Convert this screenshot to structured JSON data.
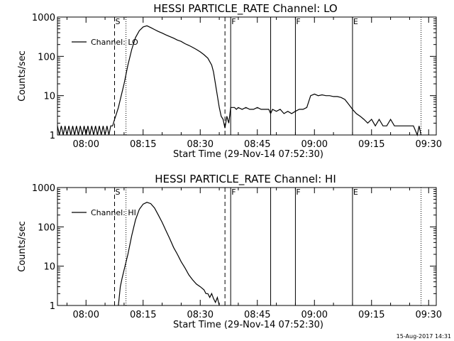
{
  "timestamp": "15-Aug-2017 14:31",
  "chart_data": [
    {
      "type": "line",
      "title": "HESSI PARTICLE_RATE Channel: LO",
      "xlabel": "Start Time (29-Nov-14 07:52:30)",
      "ylabel": "Counts/sec",
      "x_ticks": [
        "08:00",
        "08:15",
        "08:30",
        "08:45",
        "09:00",
        "09:15",
        "09:30"
      ],
      "x_range": [
        "07:52:30",
        "09:32:00"
      ],
      "y_scale": "log",
      "y_range": [
        1,
        1000
      ],
      "y_ticks": [
        "1",
        "10",
        "100",
        "1000"
      ],
      "legend": {
        "position": "top-left",
        "entries": [
          "Channel: LO"
        ]
      },
      "markers": [
        {
          "time": "08:07:30",
          "style": "dashed",
          "label": "S"
        },
        {
          "time": "08:10:30",
          "style": "dotted",
          "label": ""
        },
        {
          "time": "08:36:30",
          "style": "dashed",
          "label": ""
        },
        {
          "time": "08:38:00",
          "style": "solid",
          "label": "F"
        },
        {
          "time": "08:48:30",
          "style": "solid",
          "label": ""
        },
        {
          "time": "08:55:00",
          "style": "solid",
          "label": "F"
        },
        {
          "time": "09:10:00",
          "style": "solid",
          "label": "E"
        },
        {
          "time": "09:28:00",
          "style": "dotted",
          "label": ""
        }
      ],
      "series": [
        {
          "name": "Channel: LO",
          "points": [
            [
              "07:52:30",
              1.7
            ],
            [
              "07:53:00",
              1.0
            ],
            [
              "07:53:30",
              1.7
            ],
            [
              "07:54:00",
              1.0
            ],
            [
              "07:54:30",
              1.7
            ],
            [
              "07:55:00",
              1.0
            ],
            [
              "07:55:30",
              1.7
            ],
            [
              "07:56:00",
              1.0
            ],
            [
              "07:56:30",
              1.7
            ],
            [
              "07:57:00",
              1.0
            ],
            [
              "07:57:30",
              1.7
            ],
            [
              "07:58:00",
              1.0
            ],
            [
              "07:58:30",
              1.7
            ],
            [
              "07:59:00",
              1.0
            ],
            [
              "07:59:30",
              1.7
            ],
            [
              "08:00:00",
              1.0
            ],
            [
              "08:00:30",
              1.7
            ],
            [
              "08:01:00",
              1.0
            ],
            [
              "08:01:30",
              1.7
            ],
            [
              "08:02:00",
              1.0
            ],
            [
              "08:02:30",
              1.7
            ],
            [
              "08:03:00",
              1.0
            ],
            [
              "08:03:30",
              1.7
            ],
            [
              "08:04:00",
              1.0
            ],
            [
              "08:04:30",
              1.7
            ],
            [
              "08:05:00",
              1.0
            ],
            [
              "08:05:30",
              1.7
            ],
            [
              "08:06:00",
              1.0
            ],
            [
              "08:06:30",
              1.7
            ],
            [
              "08:07:00",
              1.7
            ],
            [
              "08:07:30",
              2.5
            ],
            [
              "08:08:00",
              3.5
            ],
            [
              "08:08:30",
              5
            ],
            [
              "08:09:00",
              8
            ],
            [
              "08:10:00",
              20
            ],
            [
              "08:11:00",
              60
            ],
            [
              "08:12:00",
              150
            ],
            [
              "08:13:00",
              300
            ],
            [
              "08:14:00",
              450
            ],
            [
              "08:15:00",
              560
            ],
            [
              "08:16:00",
              600
            ],
            [
              "08:17:00",
              540
            ],
            [
              "08:18:00",
              480
            ],
            [
              "08:19:00",
              430
            ],
            [
              "08:20:00",
              390
            ],
            [
              "08:21:00",
              350
            ],
            [
              "08:22:00",
              320
            ],
            [
              "08:23:00",
              290
            ],
            [
              "08:24:00",
              260
            ],
            [
              "08:25:00",
              240
            ],
            [
              "08:26:00",
              210
            ],
            [
              "08:27:00",
              190
            ],
            [
              "08:28:00",
              170
            ],
            [
              "08:29:00",
              150
            ],
            [
              "08:30:00",
              130
            ],
            [
              "08:31:00",
              110
            ],
            [
              "08:32:00",
              90
            ],
            [
              "08:33:00",
              60
            ],
            [
              "08:33:30",
              40
            ],
            [
              "08:34:00",
              20
            ],
            [
              "08:34:30",
              10
            ],
            [
              "08:35:00",
              5
            ],
            [
              "08:35:30",
              3
            ],
            [
              "08:36:00",
              2.5
            ],
            [
              "08:36:30",
              1.5
            ],
            [
              "08:37:00",
              3
            ],
            [
              "08:37:30",
              2
            ],
            [
              "08:38:00",
              5
            ],
            [
              "08:39:00",
              5
            ],
            [
              "08:39:30",
              4.5
            ],
            [
              "08:40:00",
              5
            ],
            [
              "08:41:00",
              4.5
            ],
            [
              "08:42:00",
              5
            ],
            [
              "08:43:00",
              4.5
            ],
            [
              "08:44:00",
              4.5
            ],
            [
              "08:45:00",
              5
            ],
            [
              "08:46:00",
              4.5
            ],
            [
              "08:47:00",
              4.5
            ],
            [
              "08:48:00",
              4.5
            ],
            [
              "08:48:30",
              3.5
            ],
            [
              "08:49:00",
              4.5
            ],
            [
              "08:50:00",
              4
            ],
            [
              "08:51:00",
              4.5
            ],
            [
              "08:52:00",
              3.5
            ],
            [
              "08:53:00",
              4
            ],
            [
              "08:54:00",
              3.5
            ],
            [
              "08:55:00",
              4
            ],
            [
              "08:56:00",
              4.5
            ],
            [
              "08:57:00",
              4.5
            ],
            [
              "08:58:00",
              5
            ],
            [
              "08:59:00",
              10
            ],
            [
              "09:00:00",
              11
            ],
            [
              "09:01:00",
              10
            ],
            [
              "09:02:00",
              10.5
            ],
            [
              "09:03:00",
              10
            ],
            [
              "09:04:00",
              10
            ],
            [
              "09:05:00",
              9.5
            ],
            [
              "09:06:00",
              9.5
            ],
            [
              "09:07:00",
              9
            ],
            [
              "09:08:00",
              8
            ],
            [
              "09:09:00",
              6
            ],
            [
              "09:10:00",
              4.5
            ],
            [
              "09:11:00",
              3.5
            ],
            [
              "09:12:00",
              3
            ],
            [
              "09:13:00",
              2.5
            ],
            [
              "09:14:00",
              2
            ],
            [
              "09:15:00",
              2.5
            ],
            [
              "09:16:00",
              1.7
            ],
            [
              "09:17:00",
              2.5
            ],
            [
              "09:18:00",
              1.7
            ],
            [
              "09:19:00",
              1.7
            ],
            [
              "09:20:00",
              2.5
            ],
            [
              "09:21:00",
              1.7
            ],
            [
              "09:22:00",
              1.7
            ],
            [
              "09:23:00",
              1.7
            ],
            [
              "09:24:00",
              1.7
            ],
            [
              "09:25:00",
              1.7
            ],
            [
              "09:26:00",
              1.7
            ],
            [
              "09:27:00",
              1.0
            ],
            [
              "09:27:30",
              1.7
            ],
            [
              "09:28:00",
              1.0
            ]
          ]
        }
      ]
    },
    {
      "type": "line",
      "title": "HESSI PARTICLE_RATE Channel: HI",
      "xlabel": "Start Time (29-Nov-14 07:52:30)",
      "ylabel": "Counts/sec",
      "x_ticks": [
        "08:00",
        "08:15",
        "08:30",
        "08:45",
        "09:00",
        "09:15",
        "09:30"
      ],
      "x_range": [
        "07:52:30",
        "09:32:00"
      ],
      "y_scale": "log",
      "y_range": [
        1,
        1000
      ],
      "y_ticks": [
        "1",
        "10",
        "100",
        "1000"
      ],
      "legend": {
        "position": "top-left",
        "entries": [
          "Channel: HI"
        ]
      },
      "markers": [
        {
          "time": "08:07:30",
          "style": "dashed",
          "label": "S"
        },
        {
          "time": "08:10:30",
          "style": "dotted",
          "label": ""
        },
        {
          "time": "08:36:30",
          "style": "dashed",
          "label": ""
        },
        {
          "time": "08:38:00",
          "style": "solid",
          "label": "F"
        },
        {
          "time": "08:48:30",
          "style": "solid",
          "label": ""
        },
        {
          "time": "08:55:00",
          "style": "solid",
          "label": "F"
        },
        {
          "time": "09:10:00",
          "style": "solid",
          "label": "E"
        },
        {
          "time": "09:28:00",
          "style": "dotted",
          "label": ""
        }
      ],
      "series": [
        {
          "name": "Channel: HI",
          "points": [
            [
              "08:08:30",
              1
            ],
            [
              "08:09:00",
              3
            ],
            [
              "08:09:30",
              5
            ],
            [
              "08:10:00",
              8
            ],
            [
              "08:11:00",
              20
            ],
            [
              "08:12:00",
              60
            ],
            [
              "08:13:00",
              150
            ],
            [
              "08:14:00",
              280
            ],
            [
              "08:15:00",
              380
            ],
            [
              "08:16:00",
              420
            ],
            [
              "08:17:00",
              390
            ],
            [
              "08:18:00",
              300
            ],
            [
              "08:19:00",
              200
            ],
            [
              "08:20:00",
              130
            ],
            [
              "08:21:00",
              80
            ],
            [
              "08:22:00",
              50
            ],
            [
              "08:23:00",
              30
            ],
            [
              "08:24:00",
              20
            ],
            [
              "08:25:00",
              13
            ],
            [
              "08:26:00",
              9
            ],
            [
              "08:27:00",
              6
            ],
            [
              "08:28:00",
              4.5
            ],
            [
              "08:29:00",
              3.5
            ],
            [
              "08:30:00",
              3
            ],
            [
              "08:31:00",
              2.5
            ],
            [
              "08:31:30",
              2
            ],
            [
              "08:32:00",
              2
            ],
            [
              "08:32:30",
              1.6
            ],
            [
              "08:33:00",
              2
            ],
            [
              "08:33:30",
              1.5
            ],
            [
              "08:34:00",
              1.2
            ],
            [
              "08:34:30",
              1.6
            ],
            [
              "08:35:00",
              1
            ]
          ]
        }
      ]
    }
  ]
}
